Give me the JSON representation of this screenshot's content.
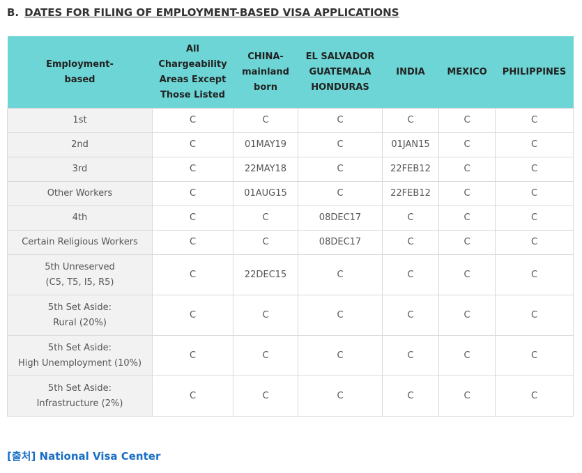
{
  "heading": {
    "prefix": "B.",
    "title": "DATES FOR FILING OF EMPLOYMENT-BASED VISA APPLICATIONS"
  },
  "table": {
    "columns": [
      [
        "Employment-",
        "based"
      ],
      [
        "All",
        "Chargeability",
        "Areas Except",
        "Those Listed"
      ],
      [
        "CHINA-",
        "mainland",
        "born"
      ],
      [
        "EL SALVADOR",
        "GUATEMALA",
        "HONDURAS"
      ],
      [
        "INDIA"
      ],
      [
        "MEXICO"
      ],
      [
        "PHILIPPINES"
      ]
    ],
    "rows": [
      {
        "label": [
          "1st"
        ],
        "cells": [
          "C",
          "C",
          "C",
          "C",
          "C",
          "C"
        ]
      },
      {
        "label": [
          "2nd"
        ],
        "cells": [
          "C",
          "01MAY19",
          "C",
          "01JAN15",
          "C",
          "C"
        ]
      },
      {
        "label": [
          "3rd"
        ],
        "cells": [
          "C",
          "22MAY18",
          "C",
          "22FEB12",
          "C",
          "C"
        ]
      },
      {
        "label": [
          "Other Workers"
        ],
        "cells": [
          "C",
          "01AUG15",
          "C",
          "22FEB12",
          "C",
          "C"
        ]
      },
      {
        "label": [
          "4th"
        ],
        "cells": [
          "C",
          "C",
          "08DEC17",
          "C",
          "C",
          "C"
        ]
      },
      {
        "label": [
          "Certain Religious Workers"
        ],
        "cells": [
          "C",
          "C",
          "08DEC17",
          "C",
          "C",
          "C"
        ]
      },
      {
        "label": [
          "5th Unreserved",
          "(C5, T5, I5, R5)"
        ],
        "cells": [
          "C",
          "22DEC15",
          "C",
          "C",
          "C",
          "C"
        ]
      },
      {
        "label": [
          "5th Set Aside:",
          "Rural (20%)"
        ],
        "cells": [
          "C",
          "C",
          "C",
          "C",
          "C",
          "C"
        ]
      },
      {
        "label": [
          "5th Set Aside:",
          "High Unemployment (10%)"
        ],
        "cells": [
          "C",
          "C",
          "C",
          "C",
          "C",
          "C"
        ]
      },
      {
        "label": [
          "5th Set Aside:",
          "Infrastructure  (2%)"
        ],
        "cells": [
          "C",
          "C",
          "C",
          "C",
          "C",
          "C"
        ]
      }
    ]
  },
  "source": {
    "text": "[출처] National Visa Center"
  }
}
